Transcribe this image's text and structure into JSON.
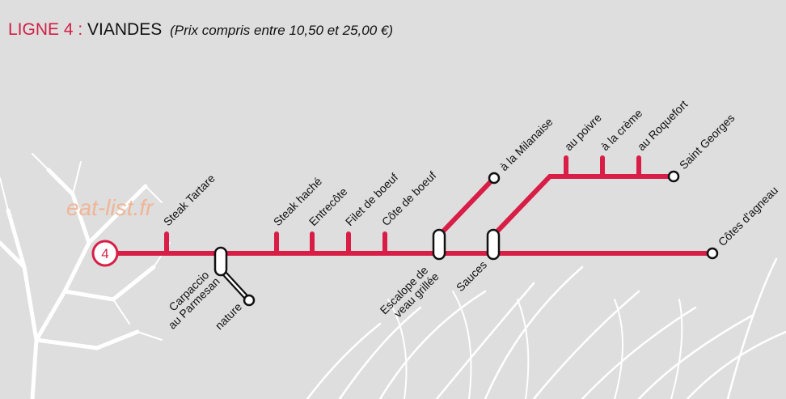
{
  "header": {
    "line": "LIGNE 4 :",
    "name": "VIANDES",
    "note": "(Prix compris entre 10,50 et 25,00 €)"
  },
  "watermark": "eat-list.fr",
  "line_number": "4",
  "stations": [
    {
      "label": "Steak Tartare"
    },
    {
      "lines": [
        "Carpaccio",
        "au Parmesan"
      ]
    },
    {
      "label": "nature"
    },
    {
      "label": "Steak haché"
    },
    {
      "label": "Entrecôte"
    },
    {
      "label": "Filet de boeuf"
    },
    {
      "label": "Côte de boeuf"
    },
    {
      "lines": [
        "Escalope de",
        "veau grillée"
      ]
    },
    {
      "label": "à la Milanaise"
    },
    {
      "label": "Sauces"
    },
    {
      "label": "au poivre"
    },
    {
      "label": "à la crème"
    },
    {
      "label": "au Roquefort"
    },
    {
      "label": "Saint Georges"
    },
    {
      "label": "Côtes d'agneau"
    }
  ]
}
